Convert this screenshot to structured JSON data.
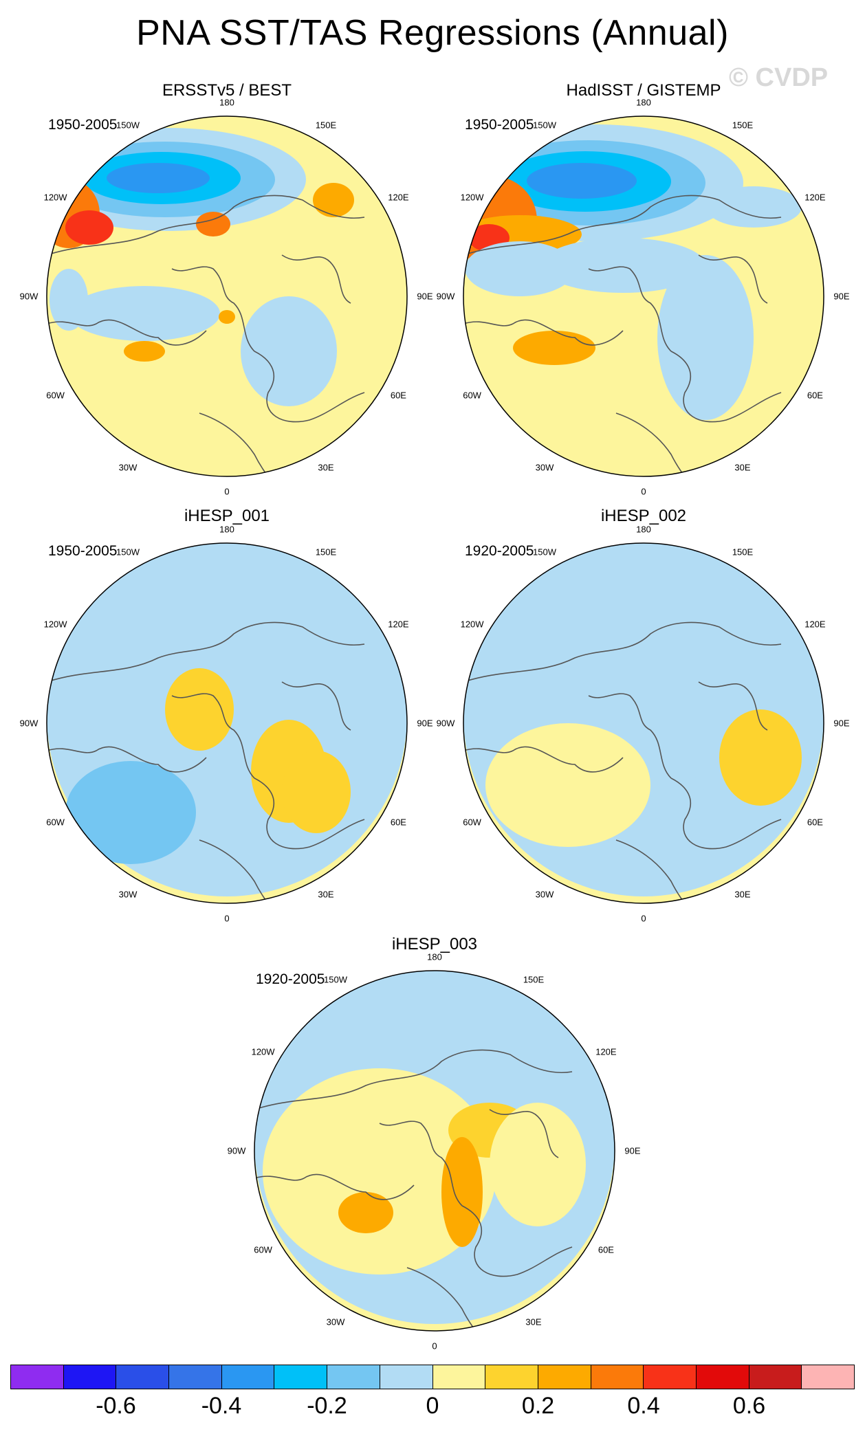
{
  "title": "PNA SST/TAS Regressions (Annual)",
  "watermark": "© CVDP",
  "panels": [
    {
      "title": "ERSSTv5 / BEST",
      "period": "1950-2005"
    },
    {
      "title": "HadISST / GISTEMP",
      "period": "1950-2005"
    },
    {
      "title": "iHESP_001",
      "period": "1950-2005"
    },
    {
      "title": "iHESP_002",
      "period": "1920-2005"
    },
    {
      "title": "iHESP_003",
      "period": "1920-2005"
    }
  ],
  "longitude_labels": [
    "180",
    "150E",
    "120E",
    "90E",
    "60E",
    "30E",
    "0",
    "30W",
    "60W",
    "90W",
    "120W",
    "150W"
  ],
  "colorbar": {
    "colors": [
      "#8f2cf0",
      "#1e16f4",
      "#2a4fe8",
      "#3574e8",
      "#2a97f2",
      "#00c0f8",
      "#74c6f2",
      "#b2dcf4",
      "#fdf59c",
      "#fdd32e",
      "#fdaa00",
      "#fb7a0a",
      "#f83218",
      "#e20a0a",
      "#c81c1c",
      "#fdb4b4"
    ],
    "labels": [
      "-0.6",
      "-0.4",
      "-0.2",
      "0",
      "0.2",
      "0.4",
      "0.6"
    ],
    "levels": [
      -0.6,
      -0.4,
      -0.2,
      0,
      0.2,
      0.4,
      0.6
    ]
  }
}
